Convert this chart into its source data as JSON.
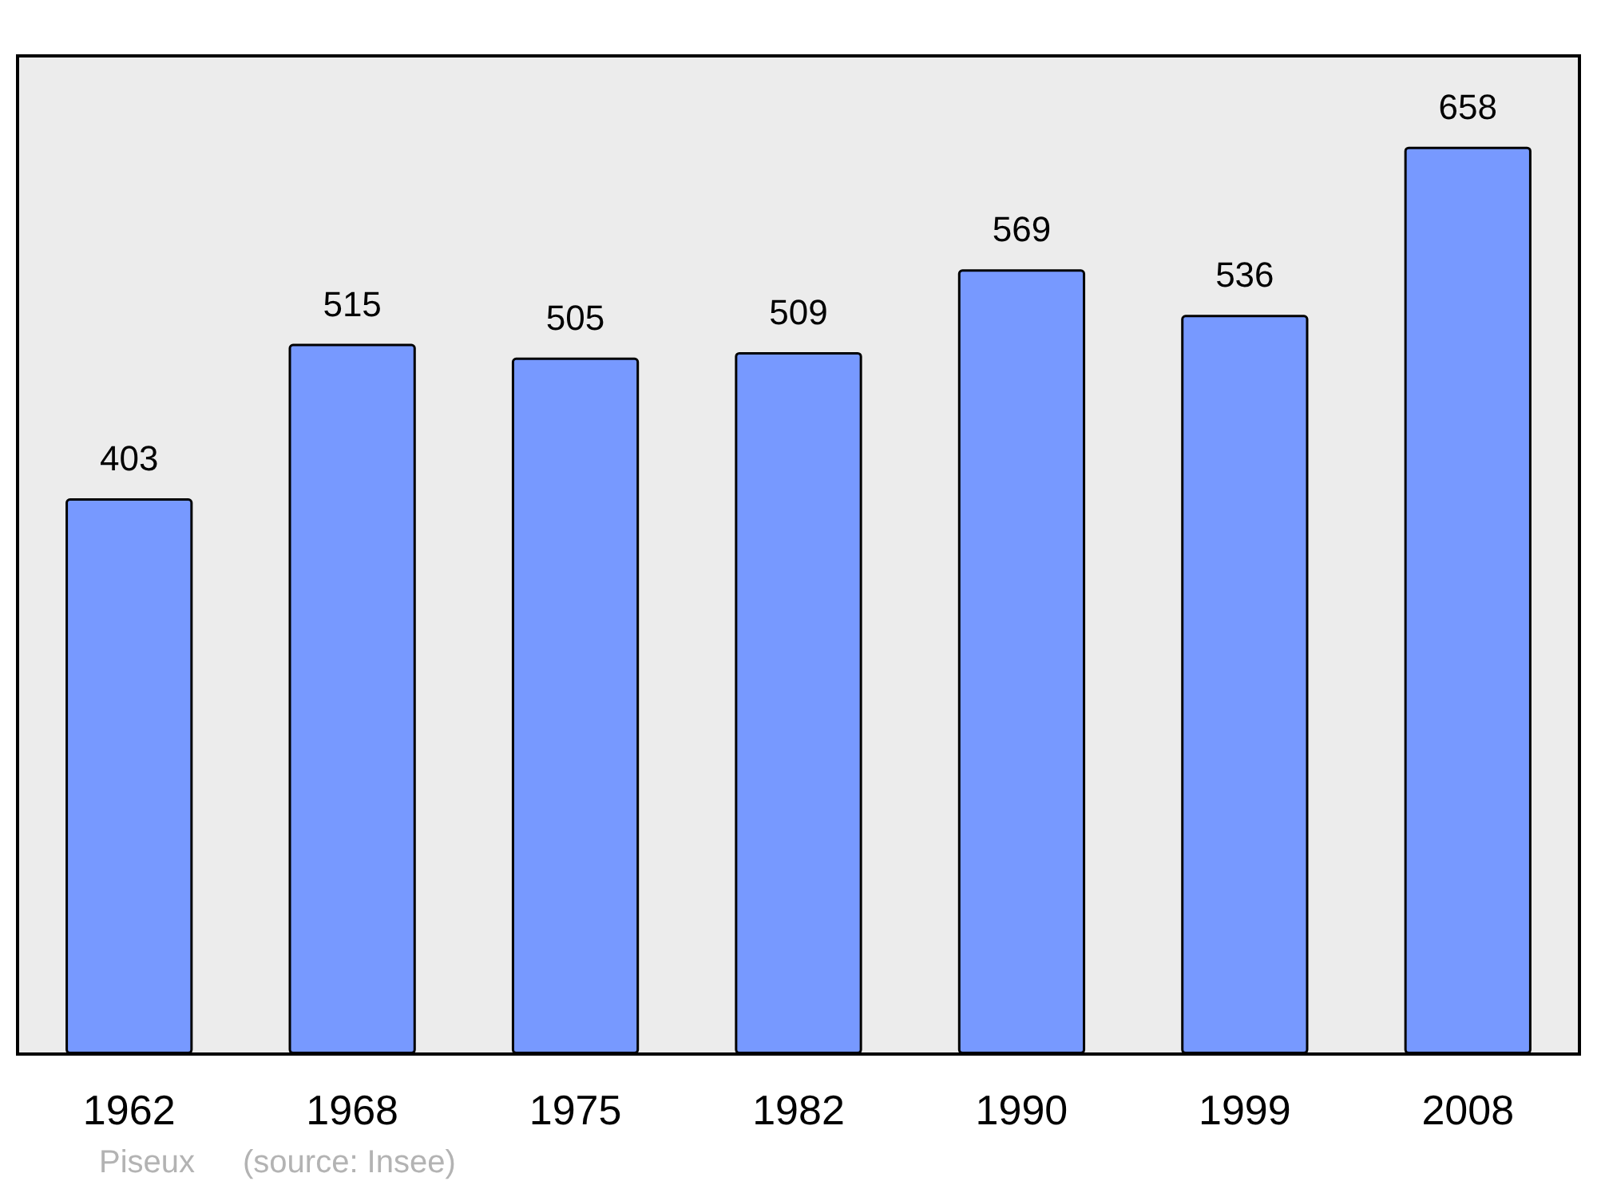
{
  "chart_data": {
    "type": "bar",
    "categories": [
      "1962",
      "1968",
      "1975",
      "1982",
      "1990",
      "1999",
      "2008"
    ],
    "values": [
      403,
      515,
      505,
      509,
      569,
      536,
      658
    ],
    "color": "#7799ff",
    "data_labels": true,
    "annotations": [
      "Piseux",
      "(source: Insee)"
    ]
  }
}
